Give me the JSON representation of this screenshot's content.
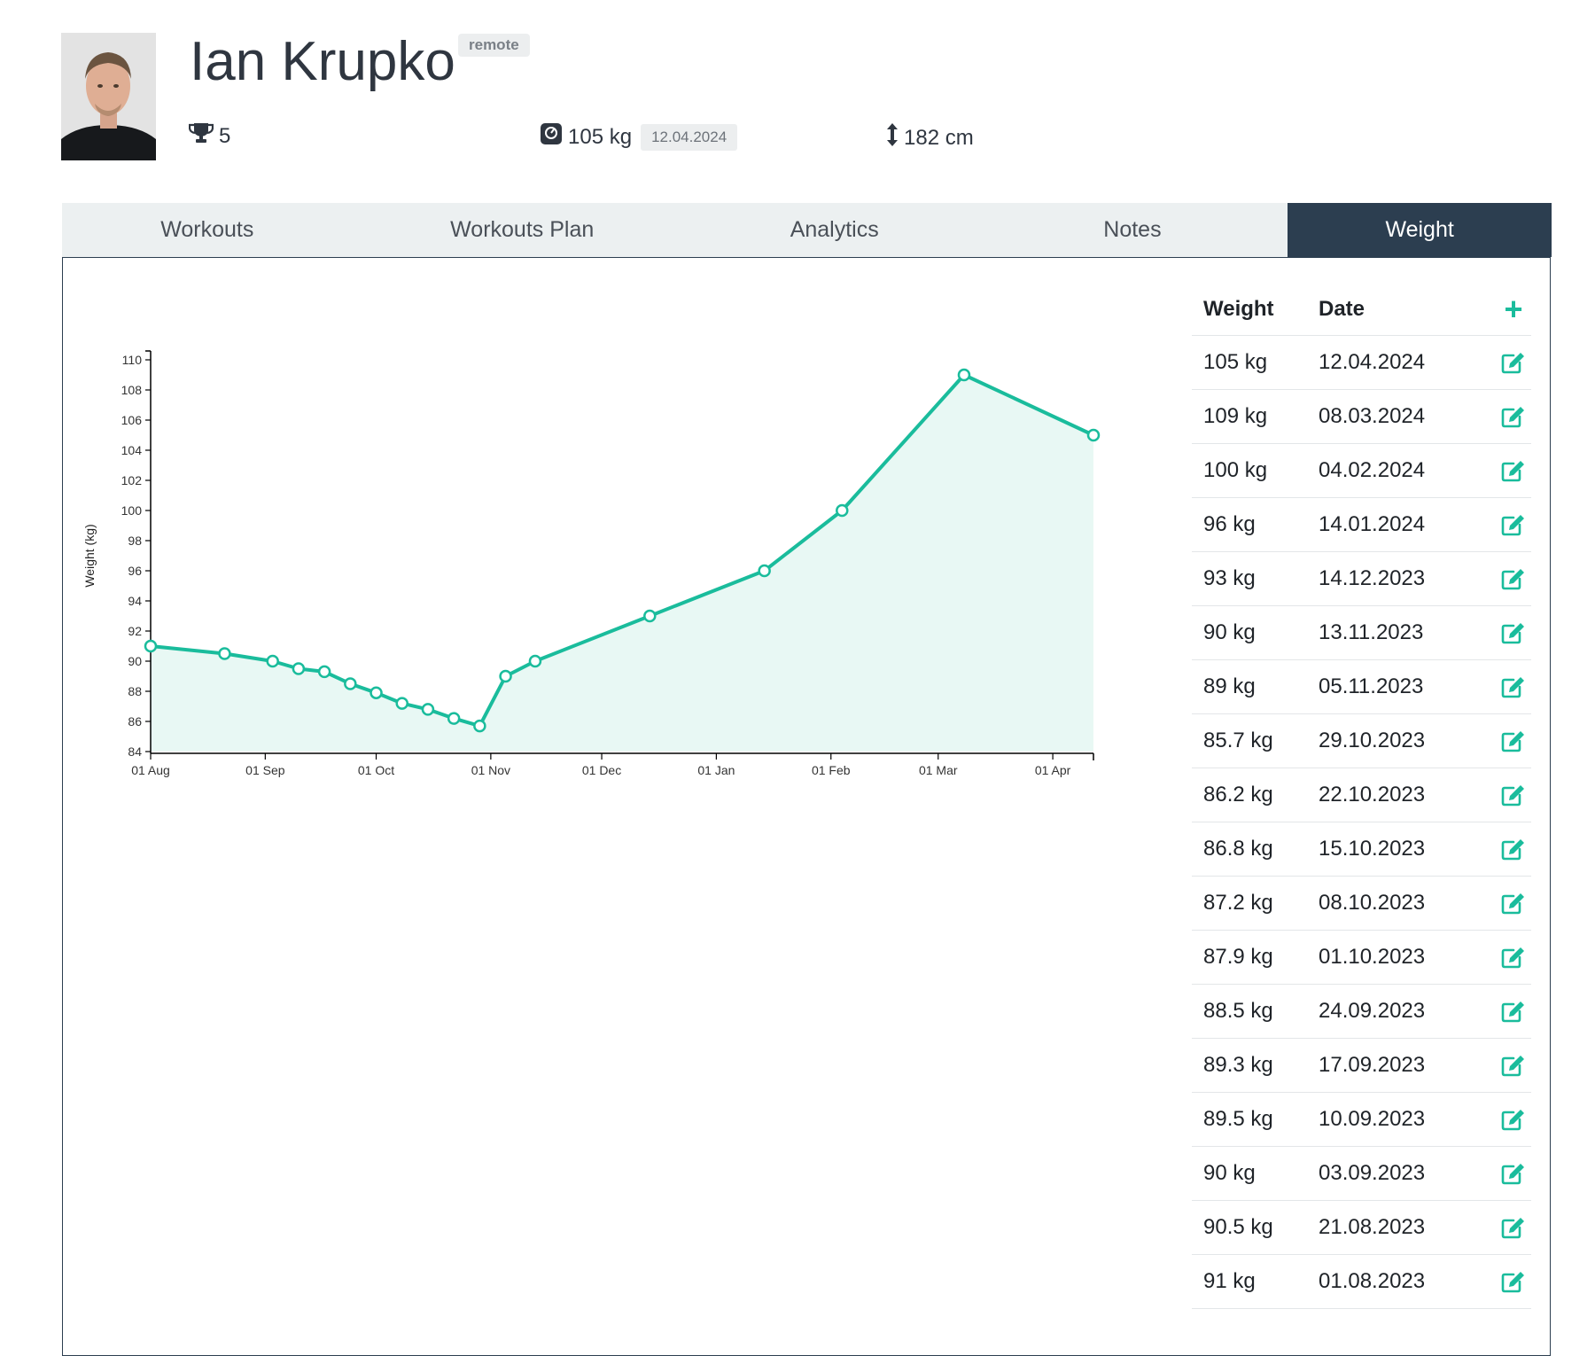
{
  "profile": {
    "name": "Ian Krupko",
    "badge": "remote",
    "trophies": "5",
    "weight": "105 kg",
    "weight_date": "12.04.2024",
    "height": "182 cm"
  },
  "tabs": [
    {
      "label": "Workouts",
      "active": false
    },
    {
      "label": "Workouts Plan",
      "active": false
    },
    {
      "label": "Analytics",
      "active": false
    },
    {
      "label": "Notes",
      "active": false
    },
    {
      "label": "Weight",
      "active": true
    }
  ],
  "colors": {
    "accent": "#1abc9c",
    "tab_active": "#2c3e50",
    "tab_bg": "#ecf0f1",
    "area_fill": "#e8f8f4"
  },
  "weight_table": {
    "header_weight": "Weight",
    "header_date": "Date",
    "add_icon": "plus-icon",
    "edit_icon": "edit-icon",
    "rows": [
      {
        "weight": "105 kg",
        "date": "12.04.2024"
      },
      {
        "weight": "109 kg",
        "date": "08.03.2024"
      },
      {
        "weight": "100 kg",
        "date": "04.02.2024"
      },
      {
        "weight": "96 kg",
        "date": "14.01.2024"
      },
      {
        "weight": "93 kg",
        "date": "14.12.2023"
      },
      {
        "weight": "90 kg",
        "date": "13.11.2023"
      },
      {
        "weight": "89 kg",
        "date": "05.11.2023"
      },
      {
        "weight": "85.7 kg",
        "date": "29.10.2023"
      },
      {
        "weight": "86.2 kg",
        "date": "22.10.2023"
      },
      {
        "weight": "86.8 kg",
        "date": "15.10.2023"
      },
      {
        "weight": "87.2 kg",
        "date": "08.10.2023"
      },
      {
        "weight": "87.9 kg",
        "date": "01.10.2023"
      },
      {
        "weight": "88.5 kg",
        "date": "24.09.2023"
      },
      {
        "weight": "89.3 kg",
        "date": "17.09.2023"
      },
      {
        "weight": "89.5 kg",
        "date": "10.09.2023"
      },
      {
        "weight": "90 kg",
        "date": "03.09.2023"
      },
      {
        "weight": "90.5 kg",
        "date": "21.08.2023"
      },
      {
        "weight": "91 kg",
        "date": "01.08.2023"
      }
    ]
  },
  "chart_data": {
    "type": "area",
    "ylabel": "Weight (kg)",
    "ylim": [
      84,
      110
    ],
    "yticks": [
      "84",
      "86",
      "88",
      "90",
      "92",
      "94",
      "96",
      "98",
      "100",
      "102",
      "104",
      "106",
      "108",
      "110"
    ],
    "xlim": [
      "2023-08-01",
      "2024-04-12"
    ],
    "xticks": [
      {
        "date": "2023-08-01",
        "label": "01 Aug"
      },
      {
        "date": "2023-09-01",
        "label": "01 Sep"
      },
      {
        "date": "2023-10-01",
        "label": "01 Oct"
      },
      {
        "date": "2023-11-01",
        "label": "01 Nov"
      },
      {
        "date": "2023-12-01",
        "label": "01 Dec"
      },
      {
        "date": "2024-01-01",
        "label": "01 Jan"
      },
      {
        "date": "2024-02-01",
        "label": "01 Feb"
      },
      {
        "date": "2024-03-01",
        "label": "01 Mar"
      },
      {
        "date": "2024-04-01",
        "label": "01 Apr"
      }
    ],
    "points": [
      {
        "x": "2023-08-01",
        "y": 91
      },
      {
        "x": "2023-08-21",
        "y": 90.5
      },
      {
        "x": "2023-09-03",
        "y": 90
      },
      {
        "x": "2023-09-10",
        "y": 89.5
      },
      {
        "x": "2023-09-17",
        "y": 89.3
      },
      {
        "x": "2023-09-24",
        "y": 88.5
      },
      {
        "x": "2023-10-01",
        "y": 87.9
      },
      {
        "x": "2023-10-08",
        "y": 87.2
      },
      {
        "x": "2023-10-15",
        "y": 86.8
      },
      {
        "x": "2023-10-22",
        "y": 86.2
      },
      {
        "x": "2023-10-29",
        "y": 85.7
      },
      {
        "x": "2023-11-05",
        "y": 89
      },
      {
        "x": "2023-11-13",
        "y": 90
      },
      {
        "x": "2023-12-14",
        "y": 93
      },
      {
        "x": "2024-01-14",
        "y": 96
      },
      {
        "x": "2024-02-04",
        "y": 100
      },
      {
        "x": "2024-03-08",
        "y": 109
      },
      {
        "x": "2024-04-12",
        "y": 105
      }
    ]
  }
}
